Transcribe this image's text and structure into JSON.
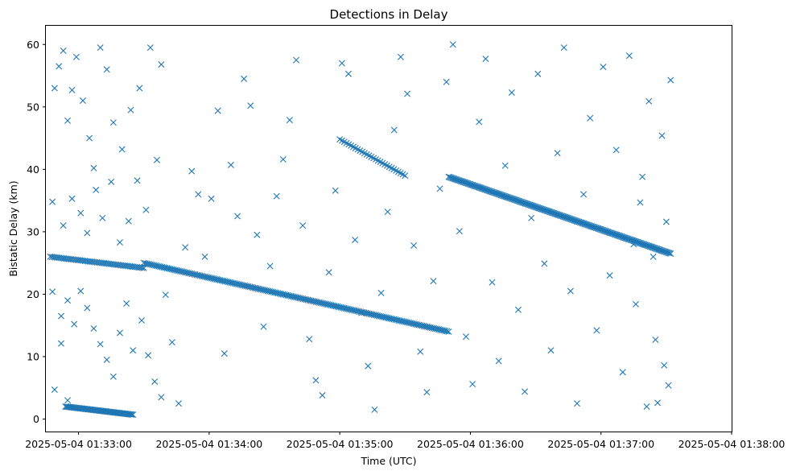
{
  "chart_data": {
    "type": "scatter",
    "title": "Detections in Delay",
    "xlabel": "Time (UTC)",
    "ylabel": "Bistatic Delay (km)",
    "marker": "x",
    "marker_color": "#1f77b4",
    "grid": false,
    "legend": "none",
    "x_domain": [
      "2025-05-04T01:32:45",
      "2025-05-04T01:38:00"
    ],
    "x_ticks": [
      {
        "t": "2025-05-04T01:33:00",
        "label": "2025-05-04 01:33:00"
      },
      {
        "t": "2025-05-04T01:34:00",
        "label": "2025-05-04 01:34:00"
      },
      {
        "t": "2025-05-04T01:35:00",
        "label": "2025-05-04 01:35:00"
      },
      {
        "t": "2025-05-04T01:36:00",
        "label": "2025-05-04 01:36:00"
      },
      {
        "t": "2025-05-04T01:37:00",
        "label": "2025-05-04 01:37:00"
      },
      {
        "t": "2025-05-04T01:38:00",
        "label": "2025-05-04 01:38:00"
      }
    ],
    "ylim": [
      -2,
      63
    ],
    "y_ticks": [
      0,
      10,
      20,
      30,
      40,
      50,
      60
    ],
    "tracks": [
      {
        "t_start": "2025-05-04T01:32:47",
        "t_end": "2025-05-04T01:33:30",
        "delay_start": 26.0,
        "delay_end": 24.2,
        "count": 55
      },
      {
        "t_start": "2025-05-04T01:33:30",
        "t_end": "2025-05-04T01:35:50",
        "delay_start": 25.0,
        "delay_end": 14.0,
        "count": 185
      },
      {
        "t_start": "2025-05-04T01:32:54",
        "t_end": "2025-05-04T01:33:25",
        "delay_start": 2.0,
        "delay_end": 0.7,
        "count": 60
      },
      {
        "t_start": "2025-05-04T01:35:00",
        "t_end": "2025-05-04T01:35:30",
        "delay_start": 44.8,
        "delay_end": 39.0,
        "count": 30
      },
      {
        "t_start": "2025-05-04T01:35:50",
        "t_end": "2025-05-04T01:37:32",
        "delay_start": 38.8,
        "delay_end": 26.5,
        "count": 195
      }
    ],
    "clutter_points": [
      [
        "2025-05-04T01:32:49",
        53.0
      ],
      [
        "2025-05-04T01:32:51",
        56.5
      ],
      [
        "2025-05-04T01:32:53",
        59.0
      ],
      [
        "2025-05-04T01:32:55",
        47.8
      ],
      [
        "2025-05-04T01:32:57",
        52.7
      ],
      [
        "2025-05-04T01:32:59",
        58.0
      ],
      [
        "2025-05-04T01:33:02",
        51.0
      ],
      [
        "2025-05-04T01:33:05",
        45.0
      ],
      [
        "2025-05-04T01:33:07",
        40.2
      ],
      [
        "2025-05-04T01:33:10",
        59.5
      ],
      [
        "2025-05-04T01:33:13",
        56.0
      ],
      [
        "2025-05-04T01:33:16",
        47.5
      ],
      [
        "2025-05-04T01:33:20",
        43.2
      ],
      [
        "2025-05-04T01:33:24",
        49.5
      ],
      [
        "2025-05-04T01:33:28",
        53.0
      ],
      [
        "2025-05-04T01:33:33",
        59.5
      ],
      [
        "2025-05-04T01:33:38",
        56.8
      ],
      [
        "2025-05-04T01:32:48",
        34.8
      ],
      [
        "2025-05-04T01:32:53",
        31.0
      ],
      [
        "2025-05-04T01:32:57",
        35.3
      ],
      [
        "2025-05-04T01:33:01",
        33.0
      ],
      [
        "2025-05-04T01:33:04",
        29.8
      ],
      [
        "2025-05-04T01:33:08",
        36.7
      ],
      [
        "2025-05-04T01:33:11",
        32.2
      ],
      [
        "2025-05-04T01:33:15",
        38.0
      ],
      [
        "2025-05-04T01:33:19",
        28.3
      ],
      [
        "2025-05-04T01:33:23",
        31.7
      ],
      [
        "2025-05-04T01:33:27",
        38.2
      ],
      [
        "2025-05-04T01:33:31",
        33.5
      ],
      [
        "2025-05-04T01:33:36",
        41.5
      ],
      [
        "2025-05-04T01:32:48",
        20.4
      ],
      [
        "2025-05-04T01:32:52",
        16.5
      ],
      [
        "2025-05-04T01:32:55",
        19.0
      ],
      [
        "2025-05-04T01:32:58",
        15.2
      ],
      [
        "2025-05-04T01:33:01",
        20.5
      ],
      [
        "2025-05-04T01:33:04",
        17.8
      ],
      [
        "2025-05-04T01:33:07",
        14.5
      ],
      [
        "2025-05-04T01:33:10",
        12.0
      ],
      [
        "2025-05-04T01:33:13",
        9.5
      ],
      [
        "2025-05-04T01:33:16",
        6.8
      ],
      [
        "2025-05-04T01:33:19",
        13.8
      ],
      [
        "2025-05-04T01:33:22",
        18.5
      ],
      [
        "2025-05-04T01:33:25",
        11.0
      ],
      [
        "2025-05-04T01:33:29",
        15.8
      ],
      [
        "2025-05-04T01:33:32",
        10.2
      ],
      [
        "2025-05-04T01:33:35",
        6.0
      ],
      [
        "2025-05-04T01:33:38",
        3.5
      ],
      [
        "2025-05-04T01:32:49",
        4.7
      ],
      [
        "2025-05-04T01:32:52",
        12.1
      ],
      [
        "2025-05-04T01:32:55",
        3.0
      ],
      [
        "2025-05-04T01:33:40",
        19.9
      ],
      [
        "2025-05-04T01:33:43",
        12.3
      ],
      [
        "2025-05-04T01:33:46",
        2.5
      ],
      [
        "2025-05-04T01:33:49",
        27.5
      ],
      [
        "2025-05-04T01:33:52",
        39.7
      ],
      [
        "2025-05-04T01:33:55",
        36.0
      ],
      [
        "2025-05-04T01:33:58",
        26.0
      ],
      [
        "2025-05-04T01:34:01",
        35.3
      ],
      [
        "2025-05-04T01:34:04",
        49.4
      ],
      [
        "2025-05-04T01:34:07",
        10.5
      ],
      [
        "2025-05-04T01:34:10",
        40.7
      ],
      [
        "2025-05-04T01:34:13",
        32.5
      ],
      [
        "2025-05-04T01:34:16",
        54.5
      ],
      [
        "2025-05-04T01:34:19",
        50.2
      ],
      [
        "2025-05-04T01:34:22",
        29.5
      ],
      [
        "2025-05-04T01:34:25",
        14.8
      ],
      [
        "2025-05-04T01:34:28",
        24.5
      ],
      [
        "2025-05-04T01:34:31",
        35.7
      ],
      [
        "2025-05-04T01:34:34",
        41.6
      ],
      [
        "2025-05-04T01:34:37",
        47.9
      ],
      [
        "2025-05-04T01:34:40",
        57.5
      ],
      [
        "2025-05-04T01:34:43",
        31.0
      ],
      [
        "2025-05-04T01:34:46",
        12.8
      ],
      [
        "2025-05-04T01:34:49",
        6.2
      ],
      [
        "2025-05-04T01:34:52",
        3.8
      ],
      [
        "2025-05-04T01:34:55",
        23.5
      ],
      [
        "2025-05-04T01:34:58",
        36.6
      ],
      [
        "2025-05-04T01:35:01",
        57.0
      ],
      [
        "2025-05-04T01:35:04",
        55.3
      ],
      [
        "2025-05-04T01:35:07",
        28.7
      ],
      [
        "2025-05-04T01:35:10",
        17.0
      ],
      [
        "2025-05-04T01:35:13",
        8.5
      ],
      [
        "2025-05-04T01:35:16",
        1.5
      ],
      [
        "2025-05-04T01:35:19",
        20.2
      ],
      [
        "2025-05-04T01:35:22",
        33.2
      ],
      [
        "2025-05-04T01:35:25",
        46.3
      ],
      [
        "2025-05-04T01:35:28",
        58.0
      ],
      [
        "2025-05-04T01:35:31",
        52.1
      ],
      [
        "2025-05-04T01:35:34",
        27.8
      ],
      [
        "2025-05-04T01:35:37",
        10.8
      ],
      [
        "2025-05-04T01:35:40",
        4.3
      ],
      [
        "2025-05-04T01:35:43",
        22.1
      ],
      [
        "2025-05-04T01:35:46",
        36.9
      ],
      [
        "2025-05-04T01:35:49",
        54.0
      ],
      [
        "2025-05-04T01:35:52",
        60.0
      ],
      [
        "2025-05-04T01:35:55",
        30.1
      ],
      [
        "2025-05-04T01:35:58",
        13.2
      ],
      [
        "2025-05-04T01:36:01",
        5.6
      ],
      [
        "2025-05-04T01:36:04",
        47.6
      ],
      [
        "2025-05-04T01:36:07",
        57.7
      ],
      [
        "2025-05-04T01:36:10",
        21.9
      ],
      [
        "2025-05-04T01:36:13",
        9.3
      ],
      [
        "2025-05-04T01:36:16",
        40.6
      ],
      [
        "2025-05-04T01:36:19",
        52.3
      ],
      [
        "2025-05-04T01:36:22",
        17.5
      ],
      [
        "2025-05-04T01:36:25",
        4.4
      ],
      [
        "2025-05-04T01:36:28",
        32.2
      ],
      [
        "2025-05-04T01:36:31",
        55.3
      ],
      [
        "2025-05-04T01:36:34",
        24.9
      ],
      [
        "2025-05-04T01:36:37",
        11.0
      ],
      [
        "2025-05-04T01:36:40",
        42.6
      ],
      [
        "2025-05-04T01:36:43",
        59.5
      ],
      [
        "2025-05-04T01:36:46",
        20.5
      ],
      [
        "2025-05-04T01:36:49",
        2.5
      ],
      [
        "2025-05-04T01:36:52",
        36.0
      ],
      [
        "2025-05-04T01:36:55",
        48.2
      ],
      [
        "2025-05-04T01:36:58",
        14.2
      ],
      [
        "2025-05-04T01:37:01",
        56.4
      ],
      [
        "2025-05-04T01:37:04",
        23.0
      ],
      [
        "2025-05-04T01:37:07",
        43.1
      ],
      [
        "2025-05-04T01:37:10",
        7.5
      ],
      [
        "2025-05-04T01:37:13",
        58.2
      ],
      [
        "2025-05-04T01:37:16",
        18.4
      ],
      [
        "2025-05-04T01:37:19",
        38.8
      ],
      [
        "2025-05-04T01:37:22",
        50.9
      ],
      [
        "2025-05-04T01:37:25",
        12.7
      ],
      [
        "2025-05-04T01:37:28",
        45.4
      ],
      [
        "2025-05-04T01:37:30",
        31.6
      ],
      [
        "2025-05-04T01:37:32",
        54.3
      ],
      [
        "2025-05-04T01:37:31",
        5.4
      ],
      [
        "2025-05-04T01:37:29",
        8.6
      ],
      [
        "2025-05-04T01:37:26",
        2.6
      ],
      [
        "2025-05-04T01:37:24",
        26.0
      ],
      [
        "2025-05-04T01:37:21",
        2.0
      ],
      [
        "2025-05-04T01:37:18",
        34.7
      ],
      [
        "2025-05-04T01:37:15",
        28.0
      ]
    ]
  }
}
